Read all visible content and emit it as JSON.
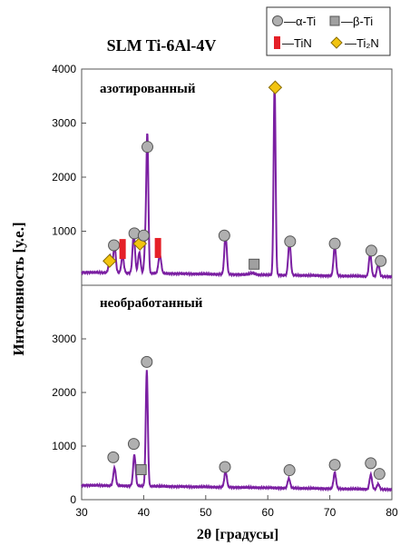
{
  "chart_data": {
    "type": "line",
    "title": "SLM Ti-6Al-4V",
    "xlabel": "2θ [градусы]",
    "ylabel": "Интесивность [у.е.]",
    "xlim": [
      30,
      80
    ],
    "x_ticks": [
      30,
      40,
      50,
      60,
      70,
      80
    ],
    "x_tick_labels": [
      "30",
      "40",
      "50",
      "60",
      "70",
      "80"
    ],
    "grid": false,
    "line_color": "#7b1fa2",
    "legend": {
      "placement": "top-right",
      "entries": [
        {
          "label": "—α-Ti",
          "marker": "circle",
          "color": "#b0b0b0"
        },
        {
          "label": "—β-Ti",
          "marker": "square",
          "color": "#a0a0a0"
        },
        {
          "label": "—TiN",
          "marker": "bar",
          "color": "#e52028"
        },
        {
          "label": "—Ti₂N",
          "marker": "diamond",
          "color": "#f2c40f"
        }
      ]
    },
    "panels": [
      {
        "label": "азотированный",
        "ylim": [
          0,
          4000
        ],
        "y_ticks": [
          1000,
          2000,
          3000,
          4000
        ],
        "y_tick_labels": [
          "1000",
          "2000",
          "3000",
          "4000"
        ],
        "baseline": 240,
        "peaks": [
          {
            "x": 34.6,
            "y": 300,
            "w": 0.22
          },
          {
            "x": 35.3,
            "y": 500,
            "w": 0.2
          },
          {
            "x": 36.6,
            "y": 310,
            "w": 0.2
          },
          {
            "x": 38.4,
            "y": 720,
            "w": 0.2
          },
          {
            "x": 39.3,
            "y": 380,
            "w": 0.2
          },
          {
            "x": 40.3,
            "y": 600,
            "w": 0.18
          },
          {
            "x": 40.6,
            "y": 2450,
            "w": 0.16
          },
          {
            "x": 42.6,
            "y": 350,
            "w": 0.22
          },
          {
            "x": 53.2,
            "y": 730,
            "w": 0.2
          },
          {
            "x": 57.5,
            "y": 30,
            "w": 0.4
          },
          {
            "x": 61.1,
            "y": 3550,
            "w": 0.16
          },
          {
            "x": 63.5,
            "y": 620,
            "w": 0.2
          },
          {
            "x": 70.8,
            "y": 560,
            "w": 0.2
          },
          {
            "x": 76.5,
            "y": 420,
            "w": 0.2
          },
          {
            "x": 77.8,
            "y": 230,
            "w": 0.2
          }
        ],
        "markers": [
          {
            "shape": "diamond",
            "x": 34.5,
            "y": 450
          },
          {
            "shape": "circle",
            "x": 35.2,
            "y": 740
          },
          {
            "shape": "bar",
            "x": 36.6,
            "y": 670
          },
          {
            "shape": "circle",
            "x": 38.5,
            "y": 960
          },
          {
            "shape": "diamond",
            "x": 39.4,
            "y": 770
          },
          {
            "shape": "circle",
            "x": 40.0,
            "y": 920
          },
          {
            "shape": "bar",
            "x": 42.3,
            "y": 690
          },
          {
            "shape": "circle",
            "x": 40.6,
            "y": 2560
          },
          {
            "shape": "circle",
            "x": 53.0,
            "y": 920
          },
          {
            "shape": "square",
            "x": 57.8,
            "y": 390
          },
          {
            "shape": "diamond",
            "x": 61.2,
            "y": 3660
          },
          {
            "shape": "circle",
            "x": 63.6,
            "y": 810
          },
          {
            "shape": "circle",
            "x": 70.8,
            "y": 770
          },
          {
            "shape": "circle",
            "x": 76.7,
            "y": 640
          },
          {
            "shape": "circle",
            "x": 78.2,
            "y": 450
          }
        ]
      },
      {
        "label": "необработанный",
        "ylim": [
          0,
          4000
        ],
        "y_ticks": [
          0,
          1000,
          2000,
          3000
        ],
        "y_tick_labels": [
          "0",
          "1000",
          "2000",
          "3000"
        ],
        "baseline": 270,
        "peaks": [
          {
            "x": 35.3,
            "y": 330,
            "w": 0.2
          },
          {
            "x": 38.5,
            "y": 580,
            "w": 0.2
          },
          {
            "x": 40.5,
            "y": 2150,
            "w": 0.17
          },
          {
            "x": 53.2,
            "y": 300,
            "w": 0.2
          },
          {
            "x": 63.4,
            "y": 180,
            "w": 0.2
          },
          {
            "x": 70.8,
            "y": 300,
            "w": 0.2
          },
          {
            "x": 76.6,
            "y": 270,
            "w": 0.2
          },
          {
            "x": 77.8,
            "y": 100,
            "w": 0.2
          }
        ],
        "markers": [
          {
            "shape": "circle",
            "x": 35.1,
            "y": 790
          },
          {
            "shape": "circle",
            "x": 38.4,
            "y": 1040
          },
          {
            "shape": "square",
            "x": 39.6,
            "y": 560
          },
          {
            "shape": "circle",
            "x": 40.5,
            "y": 2570
          },
          {
            "shape": "circle",
            "x": 53.1,
            "y": 610
          },
          {
            "shape": "circle",
            "x": 63.5,
            "y": 550
          },
          {
            "shape": "circle",
            "x": 70.8,
            "y": 650
          },
          {
            "shape": "circle",
            "x": 76.6,
            "y": 680
          },
          {
            "shape": "circle",
            "x": 78.0,
            "y": 480
          }
        ]
      }
    ]
  }
}
